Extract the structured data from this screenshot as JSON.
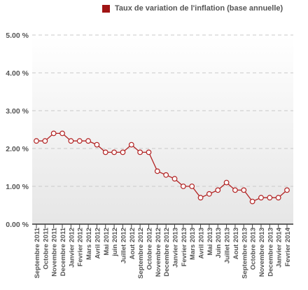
{
  "legend": {
    "label": "Taux de variation de l'inflation (base annuelle)"
  },
  "colors": {
    "series": "#b22222",
    "legend_swatch": "#a01414",
    "plot_background_top": "#ffffff",
    "plot_background_bottom": "#e6e6e6",
    "gridline": "#c8c8c8",
    "axis_text": "#555555"
  },
  "chart_data": {
    "type": "line",
    "title": "",
    "xlabel": "",
    "ylabel": "",
    "ylim": [
      0,
      5
    ],
    "y_ticks": [
      "0.00 %",
      "1.00 %",
      "2.00 %",
      "3.00 %",
      "4.00 %",
      "5.00 %"
    ],
    "grid": true,
    "legend_position": "top-right",
    "categories": [
      "Septembre 2011",
      "Octobre 2011",
      "Novembre 2011",
      "Decembre 2011",
      "Janvier 2012",
      "Fevrier 2012",
      "Mars 2012",
      "Avril 2012",
      "Mai 2012",
      "juin 2012",
      "Juillet 2012",
      "Aout 2012",
      "Septembre 2012",
      "Octobre 2012",
      "Novembre 2012",
      "Decembre 2012",
      "Janvier 2013",
      "Fevrier 2013",
      "Mars 2013",
      "Avril 2013",
      "Mai 2013",
      "Juin 2013",
      "Juillet 2013",
      "Aout 2013",
      "Septembre 2013",
      "Octobre 2013",
      "Novembre 2013",
      "Decembre 2013",
      "Janvier 2014",
      "Fevrier 2014"
    ],
    "series": [
      {
        "name": "Taux de variation de l'inflation (base annuelle)",
        "values": [
          2.2,
          2.2,
          2.4,
          2.4,
          2.2,
          2.2,
          2.2,
          2.1,
          1.9,
          1.9,
          1.9,
          2.1,
          1.9,
          1.9,
          1.4,
          1.3,
          1.2,
          1.0,
          1.0,
          0.7,
          0.8,
          0.9,
          1.1,
          0.9,
          0.9,
          0.6,
          0.7,
          0.7,
          0.7,
          0.9
        ]
      }
    ]
  }
}
